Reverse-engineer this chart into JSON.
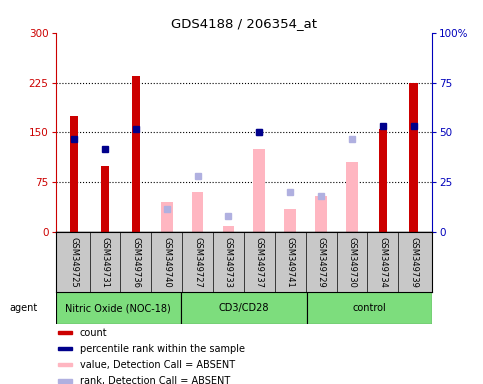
{
  "title": "GDS4188 / 206354_at",
  "samples": [
    "GSM349725",
    "GSM349731",
    "GSM349736",
    "GSM349740",
    "GSM349727",
    "GSM349733",
    "GSM349737",
    "GSM349741",
    "GSM349729",
    "GSM349730",
    "GSM349734",
    "GSM349739"
  ],
  "groups": [
    {
      "name": "Nitric Oxide (NOC-18)",
      "start": 0,
      "end": 4
    },
    {
      "name": "CD3/CD28",
      "start": 4,
      "end": 8
    },
    {
      "name": "control",
      "start": 8,
      "end": 12
    }
  ],
  "red_bars": [
    175,
    100,
    235,
    null,
    null,
    null,
    null,
    null,
    null,
    null,
    155,
    225
  ],
  "blue_squares": [
    140,
    125,
    155,
    null,
    null,
    null,
    150,
    null,
    null,
    null,
    160,
    160
  ],
  "pink_bars": [
    null,
    null,
    null,
    45,
    60,
    10,
    125,
    35,
    55,
    105,
    null,
    null
  ],
  "lavender_squares": [
    null,
    null,
    null,
    35,
    85,
    25,
    150,
    60,
    55,
    140,
    null,
    null
  ],
  "ylim": [
    0,
    300
  ],
  "yticks_left": [
    0,
    75,
    150,
    225,
    300
  ],
  "yticks_right": [
    0,
    25,
    50,
    75,
    100
  ],
  "left_tick_color": "#cc0000",
  "right_tick_color": "#0000bb",
  "red_color": "#cc0000",
  "blue_color": "#00008b",
  "pink_color": "#ffb6c1",
  "lavender_color": "#b0b0e0",
  "group_fill": "#7ddd7d",
  "xtick_bg": "#c8c8c8",
  "legend_labels": [
    "count",
    "percentile rank within the sample",
    "value, Detection Call = ABSENT",
    "rank, Detection Call = ABSENT"
  ],
  "legend_colors": [
    "#cc0000",
    "#00008b",
    "#ffb6c1",
    "#b0b0e0"
  ]
}
